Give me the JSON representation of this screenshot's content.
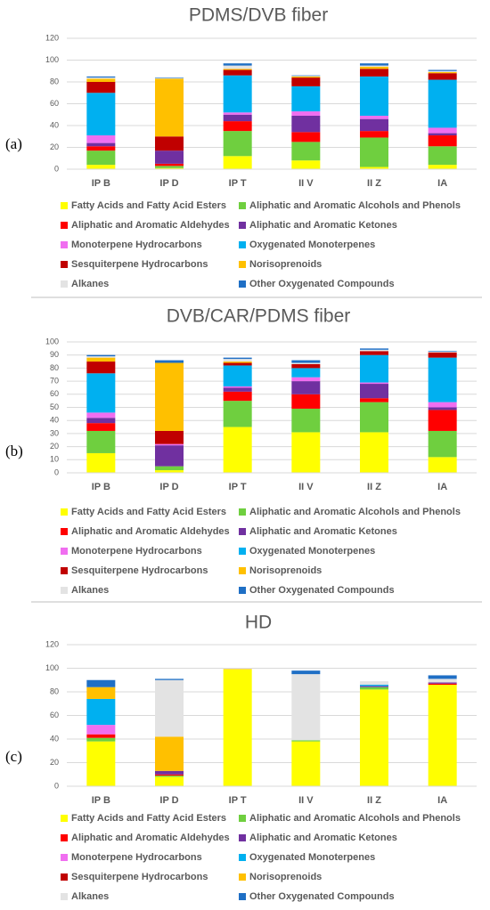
{
  "chart_data": [
    {
      "type": "bar",
      "stacked": true,
      "panel_label": "(a)",
      "title": "PDMS/DVB fiber",
      "categories": [
        "IP B",
        "IP D",
        "IP T",
        "II V",
        "II Z",
        "IA"
      ],
      "ylim": [
        0,
        120
      ],
      "yticks": [
        0,
        20,
        40,
        60,
        80,
        100,
        120
      ],
      "grid": true,
      "series": [
        {
          "name": "Fatty Acids and Fatty Acid Esters",
          "color": "#ffff00",
          "values": [
            4,
            1,
            12,
            8,
            2,
            4
          ]
        },
        {
          "name": "Aliphatic and Aromatic Alcohols and Phenols",
          "color": "#6fcf3f",
          "values": [
            13,
            2,
            23,
            17,
            27,
            17
          ]
        },
        {
          "name": "Aliphatic and Aromatic Aldehydes",
          "color": "#ff0000",
          "values": [
            4,
            2,
            9,
            9,
            6,
            10
          ]
        },
        {
          "name": "Aliphatic and Aromatic Ketones",
          "color": "#7030a0",
          "values": [
            3,
            12,
            6,
            15,
            11,
            2
          ]
        },
        {
          "name": "Monoterpene Hydrocarbons",
          "color": "#f06ef0",
          "values": [
            7,
            0,
            2,
            4,
            3,
            5
          ]
        },
        {
          "name": "Oxygenated Monoterpenes",
          "color": "#00b0f0",
          "values": [
            39,
            0,
            34,
            23,
            36,
            44
          ]
        },
        {
          "name": "Sesquiterpene Hydrocarbons",
          "color": "#c00000",
          "values": [
            10,
            13,
            5,
            8,
            7,
            6
          ]
        },
        {
          "name": "Norisoprenoids",
          "color": "#ffc000",
          "values": [
            3,
            53,
            1,
            1,
            2,
            1
          ]
        },
        {
          "name": "Alkanes",
          "color": "#e3e3e3",
          "values": [
            1,
            0.5,
            3,
            0.5,
            1,
            1
          ]
        },
        {
          "name": "Other Oxygenated Compounds",
          "color": "#1f6fc5",
          "values": [
            1,
            0.5,
            2,
            0.5,
            2,
            1
          ]
        }
      ]
    },
    {
      "type": "bar",
      "stacked": true,
      "panel_label": "(b)",
      "title": "DVB/CAR/PDMS fiber",
      "categories": [
        "IP B",
        "IP D",
        "IP T",
        "II V",
        "II Z",
        "IA"
      ],
      "ylim": [
        0,
        100
      ],
      "yticks": [
        0,
        10,
        20,
        30,
        40,
        50,
        60,
        70,
        80,
        90,
        100
      ],
      "grid": true,
      "series": [
        {
          "name": "Fatty Acids and Fatty Acid Esters",
          "color": "#ffff00",
          "values": [
            15,
            2,
            35,
            31,
            31,
            12
          ]
        },
        {
          "name": "Aliphatic and Aromatic Alcohols and Phenols",
          "color": "#6fcf3f",
          "values": [
            17,
            3,
            20,
            18,
            23,
            20
          ]
        },
        {
          "name": "Aliphatic and Aromatic Aldehydes",
          "color": "#ff0000",
          "values": [
            6,
            0,
            7,
            11,
            3,
            16
          ]
        },
        {
          "name": "Aliphatic and Aromatic Ketones",
          "color": "#7030a0",
          "values": [
            4,
            16,
            3,
            10,
            11,
            2
          ]
        },
        {
          "name": "Monoterpene Hydrocarbons",
          "color": "#f06ef0",
          "values": [
            4,
            1,
            1,
            3,
            1,
            4
          ]
        },
        {
          "name": "Oxygenated Monoterpenes",
          "color": "#00b0f0",
          "values": [
            30,
            0,
            16,
            7,
            21,
            34
          ]
        },
        {
          "name": "Sesquiterpene Hydrocarbons",
          "color": "#c00000",
          "values": [
            9,
            10,
            2,
            3,
            3,
            4
          ]
        },
        {
          "name": "Norisoprenoids",
          "color": "#ffc000",
          "values": [
            3,
            52,
            1,
            0,
            0,
            0
          ]
        },
        {
          "name": "Alkanes",
          "color": "#e3e3e3",
          "values": [
            1,
            0,
            2,
            1,
            1,
            0.5
          ]
        },
        {
          "name": "Other Oxygenated Compounds",
          "color": "#1f6fc5",
          "values": [
            1,
            2,
            1,
            2,
            1,
            0.5
          ]
        }
      ]
    },
    {
      "type": "bar",
      "stacked": true,
      "panel_label": "(c)",
      "title": "HD",
      "categories": [
        "IP B",
        "IP D",
        "IP T",
        "II V",
        "II Z",
        "IA"
      ],
      "ylim": [
        0,
        120
      ],
      "yticks": [
        0,
        20,
        40,
        60,
        80,
        100,
        120
      ],
      "grid": true,
      "series": [
        {
          "name": "Fatty Acids and Fatty Acid Esters",
          "color": "#ffff00",
          "values": [
            38,
            8,
            99,
            38,
            82,
            86
          ]
        },
        {
          "name": "Aliphatic and Aromatic Alcohols and Phenols",
          "color": "#6fcf3f",
          "values": [
            3,
            1,
            0,
            1,
            2,
            0
          ]
        },
        {
          "name": "Aliphatic and Aromatic Aldehydes",
          "color": "#ff0000",
          "values": [
            3,
            1,
            0,
            0,
            0,
            1
          ]
        },
        {
          "name": "Aliphatic and Aromatic Ketones",
          "color": "#7030a0",
          "values": [
            0,
            3,
            0,
            0,
            1,
            1
          ]
        },
        {
          "name": "Monoterpene Hydrocarbons",
          "color": "#f06ef0",
          "values": [
            8,
            0,
            0,
            0,
            0,
            0
          ]
        },
        {
          "name": "Oxygenated Monoterpenes",
          "color": "#00b0f0",
          "values": [
            22,
            0,
            0,
            0,
            1,
            0
          ]
        },
        {
          "name": "Sesquiterpene Hydrocarbons",
          "color": "#c00000",
          "values": [
            0,
            0,
            0,
            0,
            0,
            0
          ]
        },
        {
          "name": "Norisoprenoids",
          "color": "#ffc000",
          "values": [
            10,
            29,
            0.5,
            0,
            0,
            0
          ]
        },
        {
          "name": "Alkanes",
          "color": "#e3e3e3",
          "values": [
            0,
            48,
            0.5,
            56,
            3,
            3
          ]
        },
        {
          "name": "Other Oxygenated Compounds",
          "color": "#1f6fc5",
          "values": [
            6,
            1,
            0,
            3,
            0,
            3
          ]
        }
      ]
    }
  ]
}
